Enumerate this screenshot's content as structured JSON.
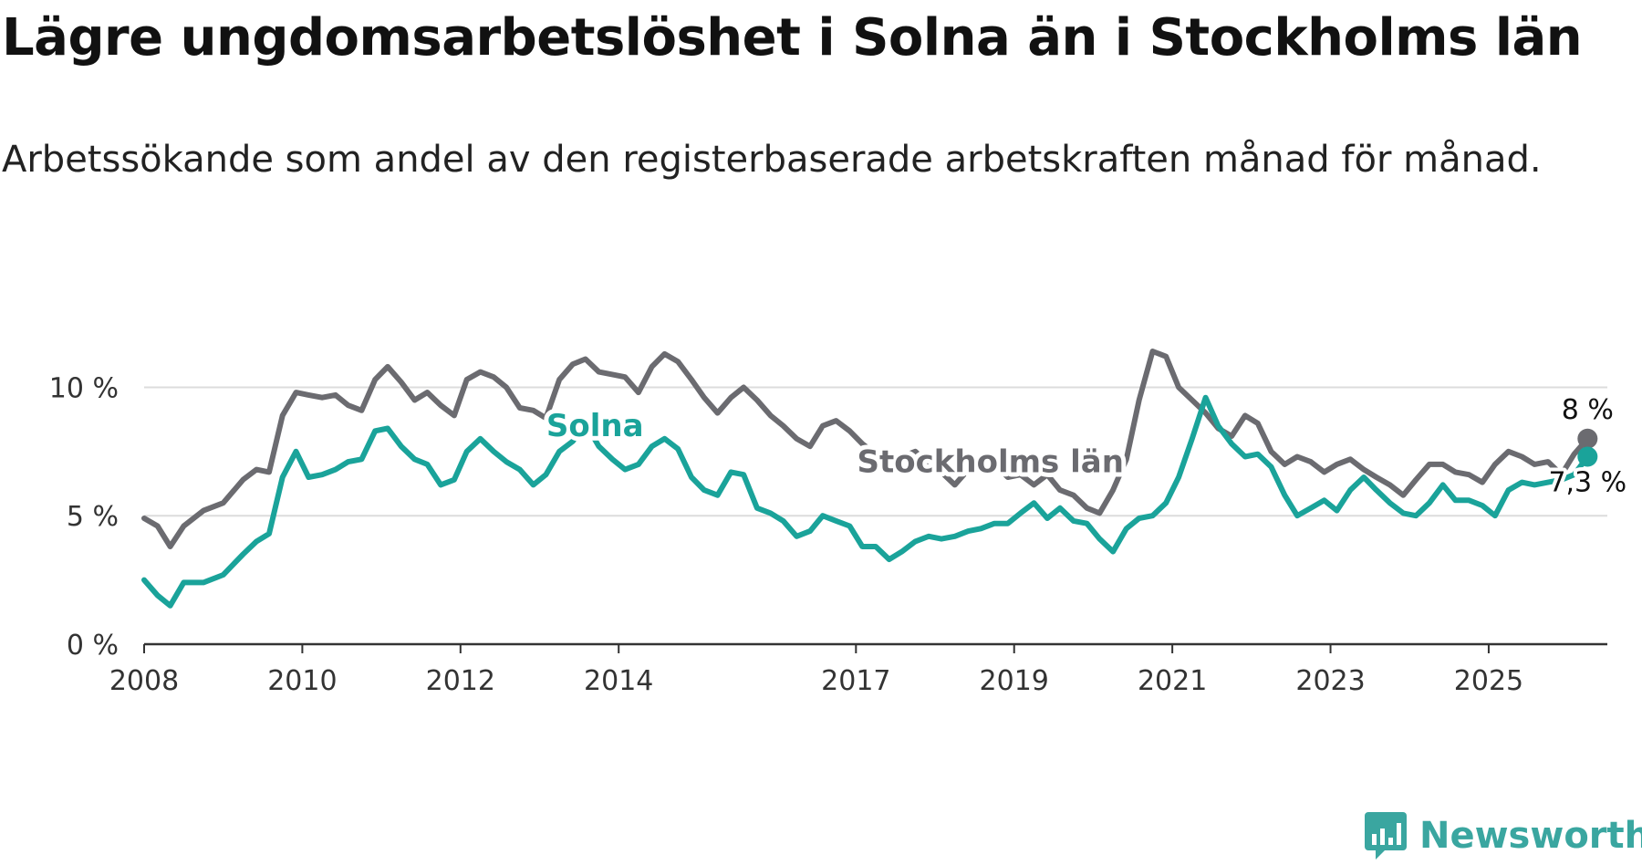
{
  "header": {
    "title": "Lägre ungdomsarbetslöshet i Solna än i Stockholms län",
    "subtitle": "Arbetssökande som andel av den registerbaserade arbetskraften månad för månad."
  },
  "brand": {
    "name": "Newsworthy",
    "color": "#3aa6a0",
    "icon": "bar-chart-bubble-icon"
  },
  "chart_data": {
    "type": "line",
    "xlim": [
      2008,
      2026.5
    ],
    "ylim": [
      0,
      13
    ],
    "xticks": [
      {
        "value": 2008,
        "label": "2008"
      },
      {
        "value": 2010,
        "label": "2010"
      },
      {
        "value": 2012,
        "label": "2012"
      },
      {
        "value": 2014,
        "label": "2014"
      },
      {
        "value": 2017,
        "label": "2017"
      },
      {
        "value": 2019,
        "label": "2019"
      },
      {
        "value": 2021,
        "label": "2021"
      },
      {
        "value": 2023,
        "label": "2023"
      },
      {
        "value": 2025,
        "label": "2025"
      }
    ],
    "yticks": [
      {
        "value": 0,
        "label": "0 %"
      },
      {
        "value": 5,
        "label": "5 %"
      },
      {
        "value": 10,
        "label": "10 %"
      }
    ],
    "grid": true,
    "series": [
      {
        "name": "Stockholms län",
        "color": "#6b6b70",
        "label_position": {
          "x": 2018.7,
          "y": 6.7
        },
        "end_label": "8 %",
        "points": [
          [
            2008.0,
            4.9
          ],
          [
            2008.17,
            4.6
          ],
          [
            2008.33,
            3.8
          ],
          [
            2008.5,
            4.6
          ],
          [
            2008.75,
            5.2
          ],
          [
            2009.0,
            5.5
          ],
          [
            2009.25,
            6.4
          ],
          [
            2009.42,
            6.8
          ],
          [
            2009.58,
            6.7
          ],
          [
            2009.75,
            8.9
          ],
          [
            2009.92,
            9.8
          ],
          [
            2010.08,
            9.7
          ],
          [
            2010.25,
            9.6
          ],
          [
            2010.42,
            9.7
          ],
          [
            2010.58,
            9.3
          ],
          [
            2010.75,
            9.1
          ],
          [
            2010.92,
            10.3
          ],
          [
            2011.08,
            10.8
          ],
          [
            2011.25,
            10.2
          ],
          [
            2011.42,
            9.5
          ],
          [
            2011.58,
            9.8
          ],
          [
            2011.75,
            9.3
          ],
          [
            2011.92,
            8.9
          ],
          [
            2012.08,
            10.3
          ],
          [
            2012.25,
            10.6
          ],
          [
            2012.42,
            10.4
          ],
          [
            2012.58,
            10.0
          ],
          [
            2012.75,
            9.2
          ],
          [
            2012.92,
            9.1
          ],
          [
            2013.08,
            8.8
          ],
          [
            2013.25,
            10.3
          ],
          [
            2013.42,
            10.9
          ],
          [
            2013.58,
            11.1
          ],
          [
            2013.75,
            10.6
          ],
          [
            2013.92,
            10.5
          ],
          [
            2014.08,
            10.4
          ],
          [
            2014.25,
            9.8
          ],
          [
            2014.42,
            10.8
          ],
          [
            2014.58,
            11.3
          ],
          [
            2014.75,
            11.0
          ],
          [
            2014.92,
            10.3
          ],
          [
            2015.08,
            9.6
          ],
          [
            2015.25,
            9.0
          ],
          [
            2015.42,
            9.6
          ],
          [
            2015.58,
            10.0
          ],
          [
            2015.75,
            9.5
          ],
          [
            2015.92,
            8.9
          ],
          [
            2016.08,
            8.5
          ],
          [
            2016.25,
            8.0
          ],
          [
            2016.42,
            7.7
          ],
          [
            2016.58,
            8.5
          ],
          [
            2016.75,
            8.7
          ],
          [
            2016.92,
            8.3
          ],
          [
            2017.08,
            7.8
          ],
          [
            2017.25,
            7.4
          ],
          [
            2017.42,
            7.0
          ],
          [
            2017.58,
            7.3
          ],
          [
            2017.75,
            7.5
          ],
          [
            2017.92,
            7.0
          ],
          [
            2018.08,
            6.7
          ],
          [
            2018.25,
            6.2
          ],
          [
            2018.42,
            6.8
          ],
          [
            2018.58,
            7.2
          ],
          [
            2018.75,
            7.0
          ],
          [
            2018.92,
            6.5
          ],
          [
            2019.08,
            6.6
          ],
          [
            2019.25,
            6.2
          ],
          [
            2019.42,
            6.6
          ],
          [
            2019.58,
            6.0
          ],
          [
            2019.75,
            5.8
          ],
          [
            2019.92,
            5.3
          ],
          [
            2020.08,
            5.1
          ],
          [
            2020.25,
            6.0
          ],
          [
            2020.42,
            7.2
          ],
          [
            2020.58,
            9.5
          ],
          [
            2020.75,
            11.4
          ],
          [
            2020.92,
            11.2
          ],
          [
            2021.08,
            10.0
          ],
          [
            2021.25,
            9.5
          ],
          [
            2021.42,
            9.0
          ],
          [
            2021.58,
            8.4
          ],
          [
            2021.75,
            8.1
          ],
          [
            2021.92,
            8.9
          ],
          [
            2022.08,
            8.6
          ],
          [
            2022.25,
            7.5
          ],
          [
            2022.42,
            7.0
          ],
          [
            2022.58,
            7.3
          ],
          [
            2022.75,
            7.1
          ],
          [
            2022.92,
            6.7
          ],
          [
            2023.08,
            7.0
          ],
          [
            2023.25,
            7.2
          ],
          [
            2023.42,
            6.8
          ],
          [
            2023.58,
            6.5
          ],
          [
            2023.75,
            6.2
          ],
          [
            2023.92,
            5.8
          ],
          [
            2024.08,
            6.4
          ],
          [
            2024.25,
            7.0
          ],
          [
            2024.42,
            7.0
          ],
          [
            2024.58,
            6.7
          ],
          [
            2024.75,
            6.6
          ],
          [
            2024.92,
            6.3
          ],
          [
            2025.08,
            7.0
          ],
          [
            2025.25,
            7.5
          ],
          [
            2025.42,
            7.3
          ],
          [
            2025.58,
            7.0
          ],
          [
            2025.75,
            7.1
          ],
          [
            2025.92,
            6.6
          ],
          [
            2026.08,
            7.4
          ],
          [
            2026.25,
            8.0
          ]
        ]
      },
      {
        "name": "Solna",
        "color": "#1aa39a",
        "label_position": {
          "x": 2013.7,
          "y": 8.1
        },
        "end_label": "7,3 %",
        "points": [
          [
            2008.0,
            2.5
          ],
          [
            2008.17,
            1.9
          ],
          [
            2008.33,
            1.5
          ],
          [
            2008.5,
            2.4
          ],
          [
            2008.75,
            2.4
          ],
          [
            2009.0,
            2.7
          ],
          [
            2009.25,
            3.5
          ],
          [
            2009.42,
            4.0
          ],
          [
            2009.58,
            4.3
          ],
          [
            2009.75,
            6.5
          ],
          [
            2009.92,
            7.5
          ],
          [
            2010.08,
            6.5
          ],
          [
            2010.25,
            6.6
          ],
          [
            2010.42,
            6.8
          ],
          [
            2010.58,
            7.1
          ],
          [
            2010.75,
            7.2
          ],
          [
            2010.92,
            8.3
          ],
          [
            2011.08,
            8.4
          ],
          [
            2011.25,
            7.7
          ],
          [
            2011.42,
            7.2
          ],
          [
            2011.58,
            7.0
          ],
          [
            2011.75,
            6.2
          ],
          [
            2011.92,
            6.4
          ],
          [
            2012.08,
            7.5
          ],
          [
            2012.25,
            8.0
          ],
          [
            2012.42,
            7.5
          ],
          [
            2012.58,
            7.1
          ],
          [
            2012.75,
            6.8
          ],
          [
            2012.92,
            6.2
          ],
          [
            2013.08,
            6.6
          ],
          [
            2013.25,
            7.5
          ],
          [
            2013.42,
            7.9
          ],
          [
            2013.58,
            8.6
          ],
          [
            2013.75,
            7.7
          ],
          [
            2013.92,
            7.2
          ],
          [
            2014.08,
            6.8
          ],
          [
            2014.25,
            7.0
          ],
          [
            2014.42,
            7.7
          ],
          [
            2014.58,
            8.0
          ],
          [
            2014.75,
            7.6
          ],
          [
            2014.92,
            6.5
          ],
          [
            2015.08,
            6.0
          ],
          [
            2015.25,
            5.8
          ],
          [
            2015.42,
            6.7
          ],
          [
            2015.58,
            6.6
          ],
          [
            2015.75,
            5.3
          ],
          [
            2015.92,
            5.1
          ],
          [
            2016.08,
            4.8
          ],
          [
            2016.25,
            4.2
          ],
          [
            2016.42,
            4.4
          ],
          [
            2016.58,
            5.0
          ],
          [
            2016.75,
            4.8
          ],
          [
            2016.92,
            4.6
          ],
          [
            2017.08,
            3.8
          ],
          [
            2017.25,
            3.8
          ],
          [
            2017.42,
            3.3
          ],
          [
            2017.58,
            3.6
          ],
          [
            2017.75,
            4.0
          ],
          [
            2017.92,
            4.2
          ],
          [
            2018.08,
            4.1
          ],
          [
            2018.25,
            4.2
          ],
          [
            2018.42,
            4.4
          ],
          [
            2018.58,
            4.5
          ],
          [
            2018.75,
            4.7
          ],
          [
            2018.92,
            4.7
          ],
          [
            2019.08,
            5.1
          ],
          [
            2019.25,
            5.5
          ],
          [
            2019.42,
            4.9
          ],
          [
            2019.58,
            5.3
          ],
          [
            2019.75,
            4.8
          ],
          [
            2019.92,
            4.7
          ],
          [
            2020.08,
            4.1
          ],
          [
            2020.25,
            3.6
          ],
          [
            2020.42,
            4.5
          ],
          [
            2020.58,
            4.9
          ],
          [
            2020.75,
            5.0
          ],
          [
            2020.92,
            5.5
          ],
          [
            2021.08,
            6.5
          ],
          [
            2021.25,
            8.0
          ],
          [
            2021.42,
            9.6
          ],
          [
            2021.58,
            8.5
          ],
          [
            2021.75,
            7.8
          ],
          [
            2021.92,
            7.3
          ],
          [
            2022.08,
            7.4
          ],
          [
            2022.25,
            6.9
          ],
          [
            2022.42,
            5.8
          ],
          [
            2022.58,
            5.0
          ],
          [
            2022.75,
            5.3
          ],
          [
            2022.92,
            5.6
          ],
          [
            2023.08,
            5.2
          ],
          [
            2023.25,
            6.0
          ],
          [
            2023.42,
            6.5
          ],
          [
            2023.58,
            6.0
          ],
          [
            2023.75,
            5.5
          ],
          [
            2023.92,
            5.1
          ],
          [
            2024.08,
            5.0
          ],
          [
            2024.25,
            5.5
          ],
          [
            2024.42,
            6.2
          ],
          [
            2024.58,
            5.6
          ],
          [
            2024.75,
            5.6
          ],
          [
            2024.92,
            5.4
          ],
          [
            2025.08,
            5.0
          ],
          [
            2025.25,
            6.0
          ],
          [
            2025.42,
            6.3
          ],
          [
            2025.58,
            6.2
          ],
          [
            2025.75,
            6.3
          ],
          [
            2025.92,
            6.4
          ],
          [
            2026.08,
            6.6
          ],
          [
            2026.25,
            7.3
          ]
        ]
      }
    ]
  }
}
